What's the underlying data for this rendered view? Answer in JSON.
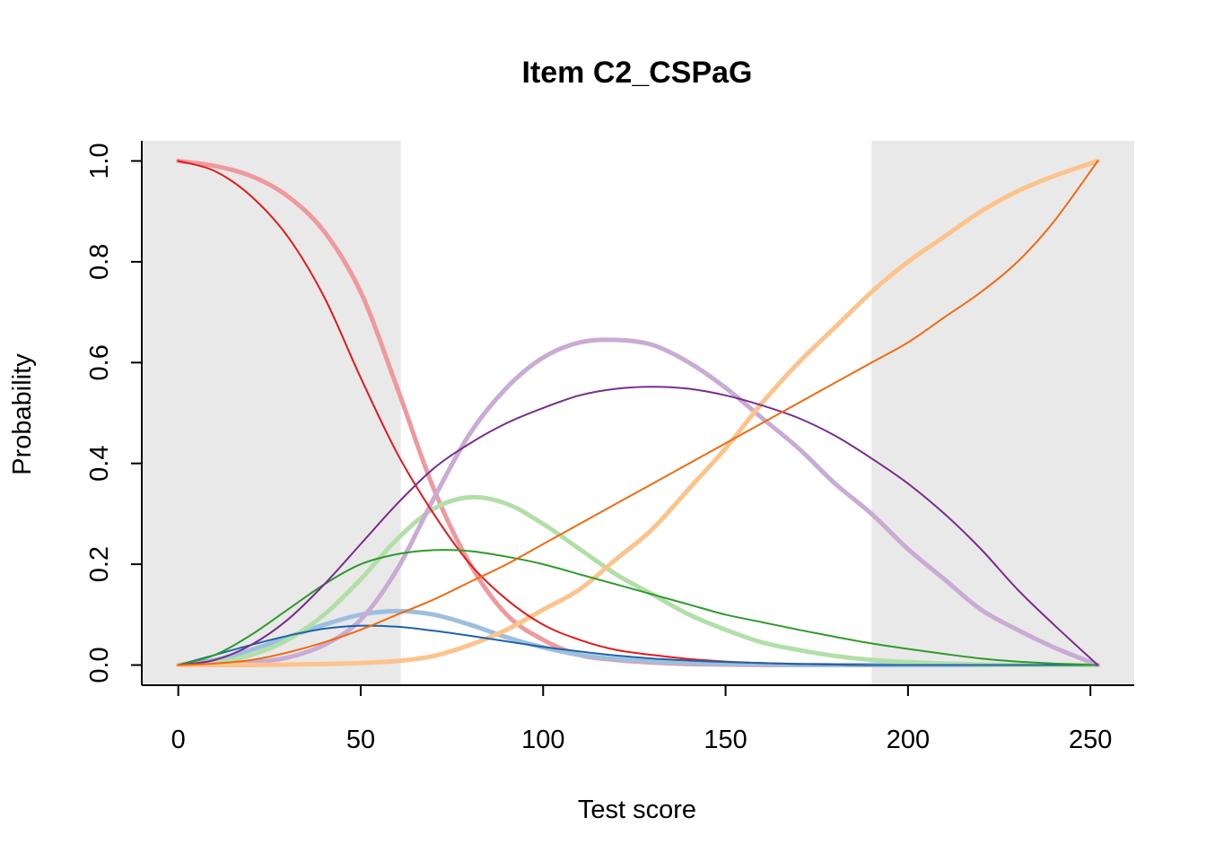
{
  "chart_data": {
    "type": "line",
    "title": "Item C2_CSPaG",
    "xlabel": "Test score",
    "ylabel": "Probability",
    "xlim": [
      -10,
      262
    ],
    "ylim": [
      -0.04,
      1.04
    ],
    "xticks": [
      0,
      50,
      100,
      150,
      200,
      250
    ],
    "xtick_labels": [
      "0",
      "50",
      "100",
      "150",
      "200",
      "250"
    ],
    "yticks": [
      0.0,
      0.2,
      0.4,
      0.6,
      0.8,
      1.0
    ],
    "ytick_labels": [
      "0.0",
      "0.2",
      "0.4",
      "0.6",
      "0.8",
      "1.0"
    ],
    "grid": false,
    "shaded_regions": [
      {
        "x_from": -10,
        "x_to": 61,
        "color": "#e9e9e9"
      },
      {
        "x_from": 190,
        "x_to": 262,
        "color": "#e9e9e9"
      }
    ],
    "x": [
      0,
      10,
      20,
      30,
      40,
      50,
      60,
      70,
      80,
      90,
      100,
      110,
      120,
      130,
      140,
      150,
      160,
      170,
      180,
      190,
      200,
      210,
      220,
      230,
      240,
      252
    ],
    "series": [
      {
        "color": "#f0999c",
        "width": 5,
        "values": [
          1.0,
          0.99,
          0.97,
          0.93,
          0.86,
          0.74,
          0.55,
          0.35,
          0.2,
          0.1,
          0.05,
          0.02,
          0.01,
          0.005,
          0.002,
          0.001,
          0.0,
          0.0,
          0.0,
          0.0,
          0.0,
          0.0,
          0.0,
          0.0,
          0.0,
          0.0
        ]
      },
      {
        "color": "#9dbfde",
        "width": 5,
        "values": [
          0.0,
          0.01,
          0.03,
          0.055,
          0.08,
          0.1,
          0.107,
          0.1,
          0.08,
          0.055,
          0.035,
          0.02,
          0.012,
          0.007,
          0.004,
          0.002,
          0.001,
          0.0,
          0.0,
          0.0,
          0.0,
          0.0,
          0.0,
          0.0,
          0.0,
          0.0
        ]
      },
      {
        "color": "#b2dfa7",
        "width": 5,
        "values": [
          0.0,
          0.005,
          0.02,
          0.05,
          0.1,
          0.17,
          0.25,
          0.31,
          0.333,
          0.32,
          0.28,
          0.23,
          0.18,
          0.14,
          0.1,
          0.07,
          0.045,
          0.03,
          0.018,
          0.01,
          0.006,
          0.003,
          0.001,
          0.0,
          0.0,
          0.0
        ]
      },
      {
        "color": "#c9abd5",
        "width": 5,
        "values": [
          0.0,
          0.001,
          0.005,
          0.015,
          0.04,
          0.09,
          0.19,
          0.33,
          0.46,
          0.55,
          0.61,
          0.64,
          0.645,
          0.635,
          0.6,
          0.55,
          0.49,
          0.43,
          0.36,
          0.3,
          0.23,
          0.17,
          0.11,
          0.07,
          0.035,
          0.0
        ]
      },
      {
        "color": "#fdc38b",
        "width": 5,
        "values": [
          0.0,
          0.0,
          0.0,
          0.001,
          0.002,
          0.004,
          0.008,
          0.018,
          0.04,
          0.07,
          0.11,
          0.15,
          0.21,
          0.27,
          0.35,
          0.43,
          0.52,
          0.6,
          0.67,
          0.74,
          0.8,
          0.85,
          0.9,
          0.94,
          0.97,
          1.0
        ]
      },
      {
        "color": "#e31a1c",
        "width": 2,
        "values": [
          1.0,
          0.98,
          0.93,
          0.85,
          0.73,
          0.57,
          0.42,
          0.3,
          0.2,
          0.13,
          0.08,
          0.05,
          0.03,
          0.02,
          0.012,
          0.007,
          0.004,
          0.002,
          0.001,
          0.0,
          0.0,
          0.0,
          0.0,
          0.0,
          0.0,
          0.0
        ]
      },
      {
        "color": "#1f63a8",
        "width": 2,
        "values": [
          0.0,
          0.02,
          0.04,
          0.058,
          0.072,
          0.078,
          0.076,
          0.068,
          0.058,
          0.047,
          0.036,
          0.027,
          0.019,
          0.013,
          0.009,
          0.006,
          0.004,
          0.002,
          0.001,
          0.0,
          0.0,
          0.0,
          0.0,
          0.0,
          0.0,
          0.0
        ]
      },
      {
        "color": "#2f9a2c",
        "width": 2,
        "values": [
          0.0,
          0.02,
          0.06,
          0.11,
          0.16,
          0.2,
          0.22,
          0.228,
          0.226,
          0.215,
          0.2,
          0.18,
          0.16,
          0.14,
          0.12,
          0.1,
          0.085,
          0.07,
          0.056,
          0.043,
          0.032,
          0.022,
          0.013,
          0.007,
          0.003,
          0.0
        ]
      },
      {
        "color": "#7a2c8e",
        "width": 2,
        "values": [
          0.0,
          0.01,
          0.04,
          0.09,
          0.16,
          0.24,
          0.32,
          0.39,
          0.44,
          0.48,
          0.51,
          0.535,
          0.548,
          0.552,
          0.548,
          0.535,
          0.515,
          0.49,
          0.455,
          0.41,
          0.36,
          0.3,
          0.23,
          0.15,
          0.08,
          0.0
        ]
      },
      {
        "color": "#f26a0f",
        "width": 2,
        "values": [
          0.0,
          0.003,
          0.01,
          0.025,
          0.045,
          0.07,
          0.1,
          0.13,
          0.165,
          0.2,
          0.24,
          0.28,
          0.32,
          0.36,
          0.4,
          0.44,
          0.48,
          0.52,
          0.56,
          0.6,
          0.64,
          0.69,
          0.74,
          0.8,
          0.88,
          1.0
        ]
      }
    ]
  }
}
